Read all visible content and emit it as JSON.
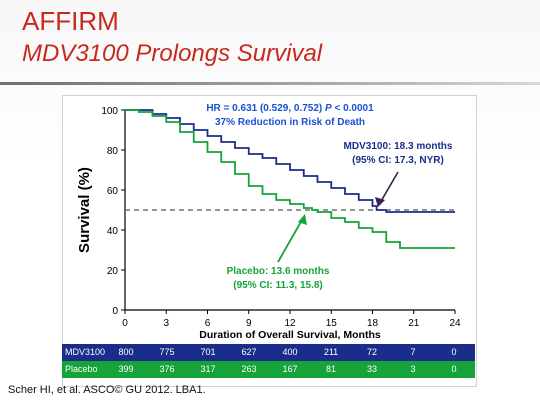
{
  "slide": {
    "title": "AFFIRM",
    "subtitle": "MDV3100 Prolongs Survival",
    "citation": "Scher HI, et al. ASCO© GU 2012. LBA1."
  },
  "chart_data": {
    "type": "line",
    "subtype": "kaplan-meier",
    "xlabel": "Duration of Overall Survival, Months",
    "ylabel": "Survival (%)",
    "xlim": [
      0,
      24
    ],
    "ylim": [
      0,
      100
    ],
    "x_ticks": [
      "0",
      "3",
      "6",
      "9",
      "12",
      "15",
      "18",
      "21",
      "24"
    ],
    "y_ticks": [
      "0",
      "20",
      "40",
      "60",
      "80",
      "100"
    ],
    "grid": false,
    "reference_line": {
      "y": 50,
      "style": "dashed"
    },
    "annotations": {
      "hr_line1_prefix": "HR = 0.631 (0.529, 0.752) ",
      "hr_line1_p": "P",
      "hr_line1_suffix": " < 0.0001",
      "hr_line2": "37% Reduction in Risk of Death",
      "mdv_line1": "MDV3100:  18.3 months",
      "mdv_line2": "(95% CI: 17.3, NYR)",
      "placebo_line1": "Placebo: 13.6 months",
      "placebo_line2": "(95% CI: 11.3, 15.8)"
    },
    "series": [
      {
        "name": "MDV3100",
        "color": "#1a2d8a",
        "x": [
          0,
          1,
          2,
          3,
          4,
          5,
          6,
          7,
          8,
          9,
          10,
          11,
          12,
          13,
          14,
          15,
          16,
          17,
          18,
          18.3,
          19,
          20,
          21,
          22,
          23,
          24
        ],
        "y": [
          100,
          100,
          98,
          96,
          93,
          90,
          87,
          84,
          81,
          78,
          76,
          73,
          70,
          67,
          64,
          61,
          58,
          55,
          52,
          50,
          49,
          49,
          49,
          49,
          49,
          49
        ]
      },
      {
        "name": "Placebo",
        "color": "#16a33a",
        "x": [
          0,
          1,
          2,
          3,
          4,
          5,
          6,
          7,
          8,
          9,
          10,
          11,
          12,
          13,
          13.6,
          14,
          15,
          16,
          17,
          18,
          19,
          20,
          21,
          22,
          23,
          24
        ],
        "y": [
          100,
          99,
          97,
          94,
          89,
          84,
          79,
          74,
          68,
          62,
          58,
          55,
          53,
          51,
          50,
          49,
          46,
          44,
          41,
          39,
          34,
          31,
          31,
          31,
          31,
          31
        ]
      }
    ],
    "risk_table": {
      "times": [
        0,
        3,
        6,
        9,
        12,
        15,
        18,
        21,
        24
      ],
      "rows": [
        {
          "label": "MDV3100",
          "values": [
            "800",
            "775",
            "701",
            "627",
            "400",
            "211",
            "72",
            "7",
            "0"
          ]
        },
        {
          "label": "Placebo",
          "values": [
            "399",
            "376",
            "317",
            "263",
            "167",
            "81",
            "33",
            "3",
            "0"
          ]
        }
      ]
    }
  }
}
